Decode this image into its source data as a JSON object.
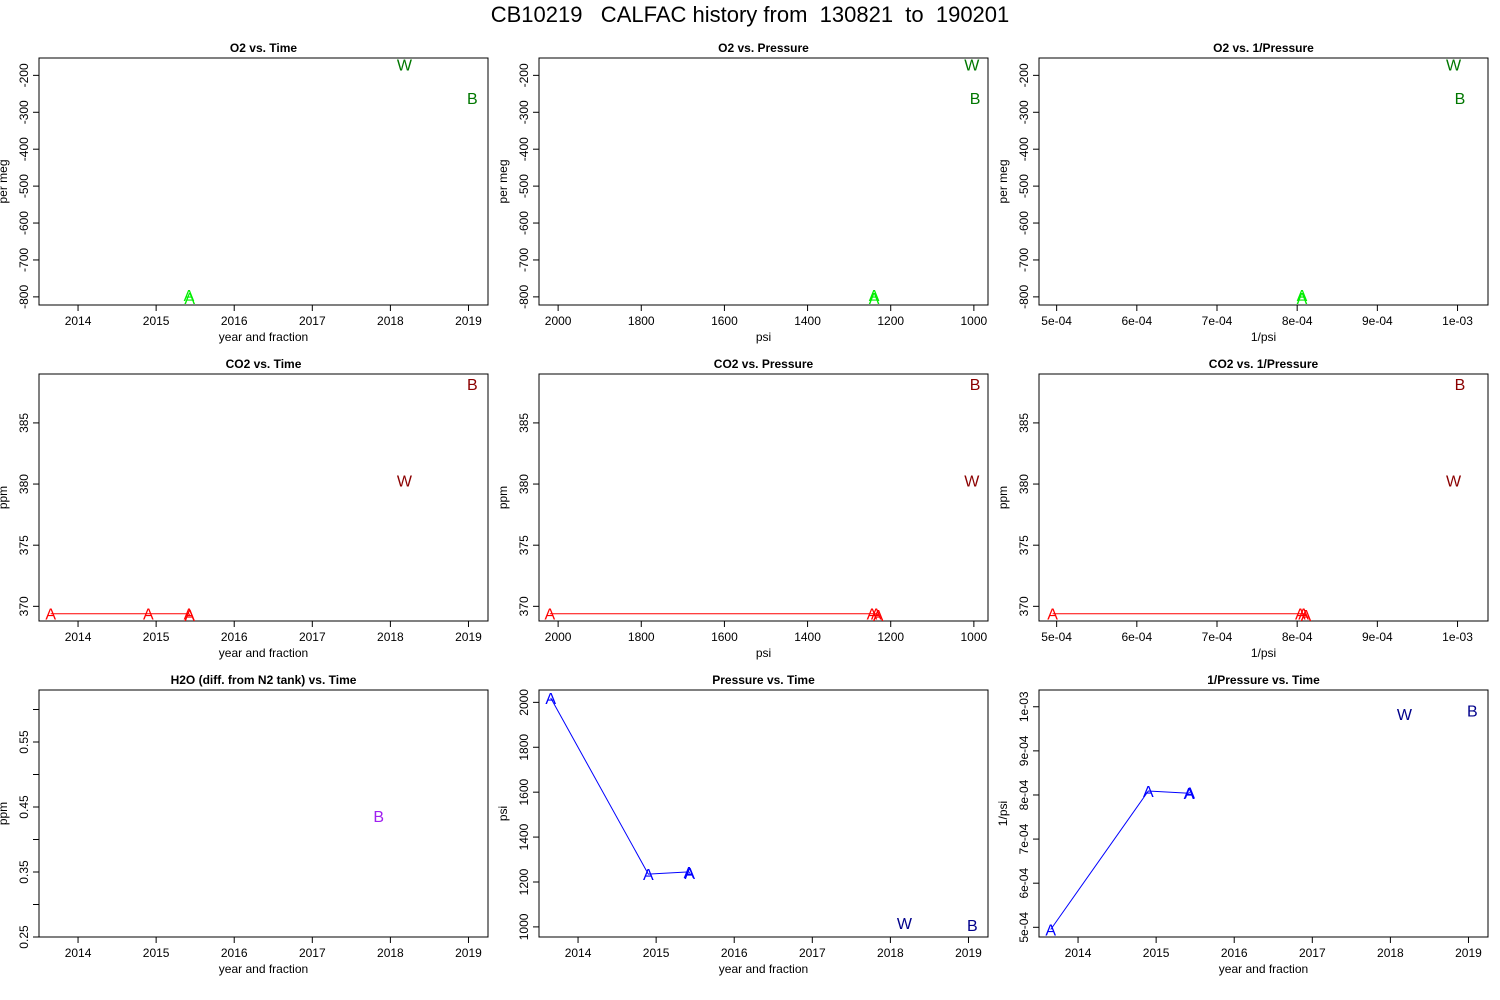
{
  "page_title": "CB10219   CALFAC history from  130821  to  190201",
  "chart_data": [
    {
      "type": "scatter",
      "id": "o2-time",
      "title": "O2 vs. Time",
      "xlabel": "year and fraction",
      "ylabel": "per meg",
      "xlim": [
        2013.5,
        2019.25
      ],
      "ylim": [
        -822,
        -153
      ],
      "xticks": [
        2014,
        2015,
        2016,
        2017,
        2018,
        2019
      ],
      "xtick_labels": [
        "2014",
        "2015",
        "2016",
        "2017",
        "2018",
        "2019"
      ],
      "yticks": [
        -800,
        -700,
        -600,
        -500,
        -400,
        -300,
        -200
      ],
      "ytick_labels": [
        "-800",
        "-700",
        "-600",
        "-500",
        "-400",
        "-300",
        "-200"
      ],
      "grid": false,
      "series": [
        {
          "color": "#00ee00",
          "connect": false,
          "points": [
            {
              "label": "A",
              "x": 2015.42,
              "y": -795
            },
            {
              "label": "A",
              "x": 2015.43,
              "y": -803
            }
          ]
        },
        {
          "color": "#007700",
          "connect": false,
          "points": [
            {
              "label": "W",
              "x": 2018.18,
              "y": -170
            },
            {
              "label": "B",
              "x": 2019.05,
              "y": -261
            }
          ]
        }
      ]
    },
    {
      "type": "scatter",
      "id": "o2-pressure",
      "title": "O2 vs. Pressure",
      "xlabel": "psi",
      "ylabel": "per meg",
      "xlim": [
        2046,
        966
      ],
      "ylim": [
        -822,
        -153
      ],
      "xticks": [
        2000,
        1800,
        1600,
        1400,
        1200,
        1000
      ],
      "xtick_labels": [
        "2000",
        "1800",
        "1600",
        "1400",
        "1200",
        "1000"
      ],
      "yticks": [
        -800,
        -700,
        -600,
        -500,
        -400,
        -300,
        -200
      ],
      "ytick_labels": [
        "-800",
        "-700",
        "-600",
        "-500",
        "-400",
        "-300",
        "-200"
      ],
      "grid": false,
      "series": [
        {
          "color": "#00ee00",
          "connect": false,
          "points": [
            {
              "label": "A",
              "x": 1240,
              "y": -795
            },
            {
              "label": "A",
              "x": 1240,
              "y": -803
            }
          ]
        },
        {
          "color": "#007700",
          "connect": false,
          "points": [
            {
              "label": "W",
              "x": 1005,
              "y": -170
            },
            {
              "label": "B",
              "x": 997,
              "y": -261
            }
          ]
        }
      ]
    },
    {
      "type": "scatter",
      "id": "o2-invpressure",
      "title": "O2 vs. 1/Pressure",
      "xlabel": "1/psi",
      "ylabel": "per meg",
      "xlim": [
        0.000478,
        0.001038
      ],
      "ylim": [
        -822,
        -153
      ],
      "xticks": [
        0.0005,
        0.0006,
        0.0007,
        0.0008,
        0.0009,
        0.001
      ],
      "xtick_labels": [
        "5e-04",
        "6e-04",
        "7e-04",
        "8e-04",
        "9e-04",
        "1e-03"
      ],
      "yticks": [
        -800,
        -700,
        -600,
        -500,
        -400,
        -300,
        -200
      ],
      "ytick_labels": [
        "-800",
        "-700",
        "-600",
        "-500",
        "-400",
        "-300",
        "-200"
      ],
      "grid": false,
      "series": [
        {
          "color": "#00ee00",
          "connect": false,
          "points": [
            {
              "label": "A",
              "x": 0.000806,
              "y": -795
            },
            {
              "label": "A",
              "x": 0.000806,
              "y": -803
            }
          ]
        },
        {
          "color": "#007700",
          "connect": false,
          "points": [
            {
              "label": "W",
              "x": 0.000995,
              "y": -170
            },
            {
              "label": "B",
              "x": 0.001003,
              "y": -261
            }
          ]
        }
      ]
    },
    {
      "type": "scatter",
      "id": "co2-time",
      "title": "CO2 vs. Time",
      "xlabel": "year and fraction",
      "ylabel": "ppm",
      "xlim": [
        2013.5,
        2019.25
      ],
      "ylim": [
        368.8,
        389.0
      ],
      "xticks": [
        2014,
        2015,
        2016,
        2017,
        2018,
        2019
      ],
      "xtick_labels": [
        "2014",
        "2015",
        "2016",
        "2017",
        "2018",
        "2019"
      ],
      "yticks": [
        370,
        375,
        380,
        385
      ],
      "ytick_labels": [
        "370",
        "375",
        "380",
        "385"
      ],
      "grid": false,
      "series": [
        {
          "color": "#ff0000",
          "connect": true,
          "points": [
            {
              "label": "A",
              "x": 2013.65,
              "y": 369.4
            },
            {
              "label": "A",
              "x": 2014.9,
              "y": 369.4
            },
            {
              "label": "A",
              "x": 2015.42,
              "y": 369.4
            },
            {
              "label": "A",
              "x": 2015.43,
              "y": 369.3
            }
          ]
        },
        {
          "color": "#8b0000",
          "connect": false,
          "points": [
            {
              "label": "W",
              "x": 2018.18,
              "y": 380.3
            },
            {
              "label": "B",
              "x": 2019.05,
              "y": 388.2
            }
          ]
        }
      ]
    },
    {
      "type": "scatter",
      "id": "co2-pressure",
      "title": "CO2 vs. Pressure",
      "xlabel": "psi",
      "ylabel": "ppm",
      "xlim": [
        2046,
        966
      ],
      "ylim": [
        368.8,
        389.0
      ],
      "xticks": [
        2000,
        1800,
        1600,
        1400,
        1200,
        1000
      ],
      "xtick_labels": [
        "2000",
        "1800",
        "1600",
        "1400",
        "1200",
        "1000"
      ],
      "yticks": [
        370,
        375,
        380,
        385
      ],
      "ytick_labels": [
        "370",
        "375",
        "380",
        "385"
      ],
      "grid": false,
      "series": [
        {
          "color": "#ff0000",
          "connect": true,
          "points": [
            {
              "label": "A",
              "x": 2020,
              "y": 369.4
            },
            {
              "label": "A",
              "x": 1245,
              "y": 369.4
            },
            {
              "label": "A",
              "x": 1235,
              "y": 369.4
            },
            {
              "label": "A",
              "x": 1230,
              "y": 369.3
            }
          ]
        },
        {
          "color": "#8b0000",
          "connect": false,
          "points": [
            {
              "label": "W",
              "x": 1005,
              "y": 380.3
            },
            {
              "label": "B",
              "x": 997,
              "y": 388.2
            }
          ]
        }
      ]
    },
    {
      "type": "scatter",
      "id": "co2-invpressure",
      "title": "CO2 vs. 1/Pressure",
      "xlabel": "1/psi",
      "ylabel": "ppm",
      "xlim": [
        0.000478,
        0.001038
      ],
      "ylim": [
        368.8,
        389.0
      ],
      "xticks": [
        0.0005,
        0.0006,
        0.0007,
        0.0008,
        0.0009,
        0.001
      ],
      "xtick_labels": [
        "5e-04",
        "6e-04",
        "7e-04",
        "8e-04",
        "9e-04",
        "1e-03"
      ],
      "yticks": [
        370,
        375,
        380,
        385
      ],
      "ytick_labels": [
        "370",
        "375",
        "380",
        "385"
      ],
      "grid": false,
      "series": [
        {
          "color": "#ff0000",
          "connect": true,
          "points": [
            {
              "label": "A",
              "x": 0.000495,
              "y": 369.4
            },
            {
              "label": "A",
              "x": 0.000804,
              "y": 369.4
            },
            {
              "label": "A",
              "x": 0.000808,
              "y": 369.4
            },
            {
              "label": "A",
              "x": 0.000811,
              "y": 369.3
            }
          ]
        },
        {
          "color": "#8b0000",
          "connect": false,
          "points": [
            {
              "label": "W",
              "x": 0.000995,
              "y": 380.3
            },
            {
              "label": "B",
              "x": 0.001003,
              "y": 388.2
            }
          ]
        }
      ]
    },
    {
      "type": "scatter",
      "id": "h2o-time",
      "title": "H2O (diff. from N2 tank) vs. Time",
      "xlabel": "year and fraction",
      "ylabel": "ppm",
      "xlim": [
        2013.5,
        2019.25
      ],
      "ylim": [
        0.25,
        0.63
      ],
      "xticks": [
        2014,
        2015,
        2016,
        2017,
        2018,
        2019
      ],
      "xtick_labels": [
        "2014",
        "2015",
        "2016",
        "2017",
        "2018",
        "2019"
      ],
      "yticks": [
        0.25,
        0.3,
        0.35,
        0.4,
        0.45,
        0.5,
        0.55,
        0.6
      ],
      "ytick_labels": [
        "0.25",
        "",
        "0.35",
        "",
        "0.45",
        "",
        "0.55",
        ""
      ],
      "grid": false,
      "series": [
        {
          "color": "#a020f0",
          "connect": false,
          "points": [
            {
              "label": "B",
              "x": 2017.85,
              "y": 0.436
            }
          ]
        }
      ]
    },
    {
      "type": "scatter",
      "id": "pressure-time",
      "title": "Pressure vs. Time",
      "xlabel": "year and fraction",
      "ylabel": "psi",
      "xlim": [
        2013.5,
        2019.25
      ],
      "ylim": [
        955,
        2055
      ],
      "xticks": [
        2014,
        2015,
        2016,
        2017,
        2018,
        2019
      ],
      "xtick_labels": [
        "2014",
        "2015",
        "2016",
        "2017",
        "2018",
        "2019"
      ],
      "yticks": [
        1000,
        1200,
        1400,
        1600,
        1800,
        2000
      ],
      "ytick_labels": [
        "1000",
        "1200",
        "1400",
        "1600",
        "1800",
        "2000"
      ],
      "grid": false,
      "series": [
        {
          "color": "#0000ff",
          "connect": true,
          "points": [
            {
              "label": "A",
              "x": 2013.65,
              "y": 2020
            },
            {
              "label": "A",
              "x": 2014.9,
              "y": 1235
            },
            {
              "label": "A",
              "x": 2015.42,
              "y": 1245
            },
            {
              "label": "A",
              "x": 2015.43,
              "y": 1240
            }
          ]
        },
        {
          "color": "#00008b",
          "connect": false,
          "points": [
            {
              "label": "W",
              "x": 2018.18,
              "y": 1017
            },
            {
              "label": "B",
              "x": 2019.05,
              "y": 1008
            }
          ]
        }
      ]
    },
    {
      "type": "scatter",
      "id": "invpressure-time",
      "title": "1/Pressure vs. Time",
      "xlabel": "year and fraction",
      "ylabel": "1/psi",
      "xlim": [
        2013.5,
        2019.25
      ],
      "ylim": [
        0.000478,
        0.001038
      ],
      "xticks": [
        2014,
        2015,
        2016,
        2017,
        2018,
        2019
      ],
      "xtick_labels": [
        "2014",
        "2015",
        "2016",
        "2017",
        "2018",
        "2019"
      ],
      "yticks": [
        0.0005,
        0.0006,
        0.0007,
        0.0008,
        0.0009,
        0.001
      ],
      "ytick_labels": [
        "5e-04",
        "6e-04",
        "7e-04",
        "8e-04",
        "9e-04",
        "1e-03"
      ],
      "grid": false,
      "series": [
        {
          "color": "#0000ff",
          "connect": true,
          "points": [
            {
              "label": "A",
              "x": 2013.65,
              "y": 0.000495
            },
            {
              "label": "A",
              "x": 2014.9,
              "y": 0.000809
            },
            {
              "label": "A",
              "x": 2015.42,
              "y": 0.000804
            },
            {
              "label": "A",
              "x": 2015.43,
              "y": 0.000806
            }
          ]
        },
        {
          "color": "#00008b",
          "connect": false,
          "points": [
            {
              "label": "W",
              "x": 2018.18,
              "y": 0.000984
            },
            {
              "label": "B",
              "x": 2019.05,
              "y": 0.000992
            }
          ]
        }
      ]
    }
  ]
}
